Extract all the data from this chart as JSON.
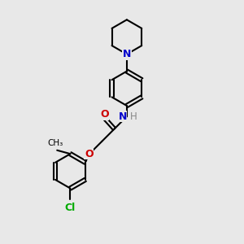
{
  "bg_color": "#e8e8e8",
  "bond_color": "#000000",
  "N_color": "#0000cc",
  "O_color": "#cc0000",
  "Cl_color": "#00aa00",
  "H_color": "#888888",
  "line_width": 1.5,
  "figsize": [
    3.0,
    3.0
  ],
  "dpi": 100,
  "xlim": [
    0,
    10
  ],
  "ylim": [
    0,
    10
  ]
}
